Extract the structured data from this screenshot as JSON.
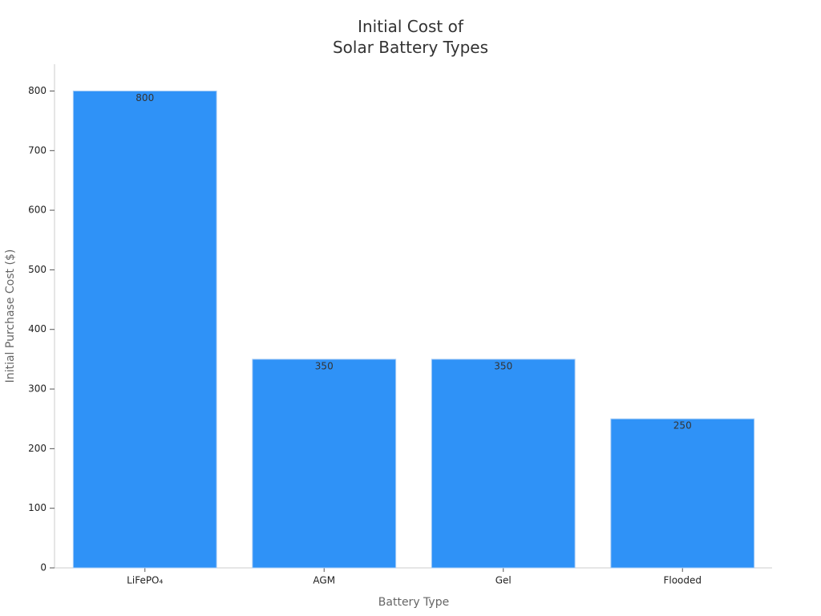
{
  "chart_data": {
    "type": "bar",
    "title": "Initial Cost of\nSolar Battery Types",
    "x_label": "Battery Type",
    "y_label": "Initial Purchase Cost ($)",
    "categories": [
      "LiFePO₄",
      "AGM",
      "Gel",
      "Flooded"
    ],
    "values": [
      800,
      350,
      350,
      250
    ],
    "color": "#2f92f7",
    "ylim": [
      0,
      845
    ],
    "yticks": [
      0,
      100,
      200,
      300,
      400,
      500,
      600,
      700,
      800
    ],
    "grid": false
  }
}
